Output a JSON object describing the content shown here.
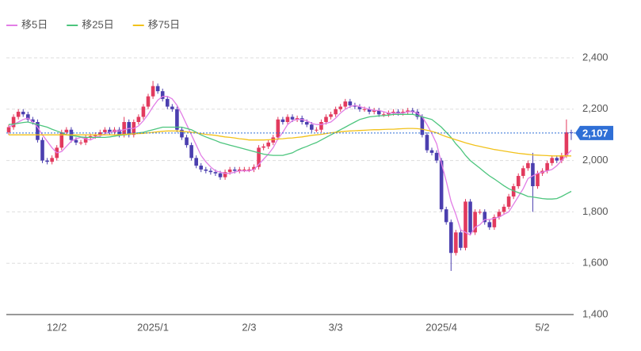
{
  "chart_data": {
    "type": "candlestick",
    "categories": [
      null,
      null,
      null,
      null,
      null,
      null,
      null,
      null,
      null,
      null,
      "12/2",
      null,
      null,
      null,
      null,
      null,
      null,
      null,
      null,
      null,
      null,
      null,
      null,
      null,
      null,
      null,
      null,
      null,
      null,
      null,
      "2025/1",
      null,
      null,
      null,
      null,
      null,
      null,
      null,
      null,
      null,
      null,
      null,
      null,
      null,
      null,
      null,
      null,
      null,
      null,
      null,
      "2/3",
      null,
      null,
      null,
      null,
      null,
      null,
      null,
      null,
      null,
      null,
      null,
      null,
      null,
      null,
      null,
      null,
      null,
      "3/3",
      null,
      null,
      null,
      null,
      null,
      null,
      null,
      null,
      null,
      null,
      null,
      null,
      null,
      null,
      null,
      null,
      null,
      null,
      null,
      null,
      null,
      "2025/4",
      null,
      null,
      null,
      null,
      null,
      null,
      null,
      null,
      null,
      null,
      null,
      null,
      null,
      null,
      null,
      null,
      null,
      null,
      null,
      null,
      "5/2",
      null,
      null,
      null,
      null,
      null,
      null
    ],
    "candles": {
      "up_color": "#e23a5e",
      "down_color": "#4b3faf",
      "open": [
        2110,
        2130,
        2170,
        2190,
        2180,
        2160,
        2150,
        2080,
        2000,
        1995,
        2010,
        2050,
        2110,
        2120,
        2080,
        2070,
        2070,
        2090,
        2095,
        2100,
        2110,
        2120,
        2110,
        2120,
        2100,
        2150,
        2100,
        2150,
        2170,
        2210,
        2250,
        2290,
        2270,
        2240,
        2210,
        2200,
        2120,
        2090,
        2060,
        2010,
        1980,
        1965,
        1960,
        1955,
        1950,
        1935,
        1955,
        1965,
        1960,
        1965,
        1965,
        1965,
        1975,
        2050,
        2055,
        2070,
        2090,
        2160,
        2150,
        2170,
        2160,
        2165,
        2150,
        2140,
        2120,
        2120,
        2150,
        2170,
        2180,
        2200,
        2210,
        2230,
        2215,
        2210,
        2200,
        2200,
        2190,
        2195,
        2180,
        2180,
        2185,
        2190,
        2185,
        2190,
        2195,
        2190,
        2170,
        2100,
        2040,
        2030,
        2000,
        1810,
        1760,
        1640,
        1720,
        1660,
        1840,
        1720,
        1800,
        1800,
        1760,
        1740,
        1780,
        1800,
        1820,
        1860,
        1900,
        1940,
        1970,
        1990,
        1900,
        1950,
        1960,
        1990,
        2010,
        2000,
        2020,
        2110
      ],
      "high": [
        2140,
        2180,
        2200,
        2200,
        2190,
        2170,
        2160,
        2090,
        2010,
        2020,
        2060,
        2120,
        2130,
        2130,
        2090,
        2080,
        2100,
        2105,
        2110,
        2120,
        2130,
        2130,
        2130,
        2130,
        2170,
        2160,
        2160,
        2180,
        2220,
        2260,
        2310,
        2300,
        2280,
        2250,
        2220,
        2210,
        2130,
        2100,
        2070,
        2020,
        1990,
        1975,
        1970,
        1965,
        1960,
        1965,
        1975,
        1975,
        1975,
        1975,
        1975,
        1985,
        2060,
        2065,
        2080,
        2100,
        2170,
        2170,
        2180,
        2180,
        2175,
        2175,
        2160,
        2150,
        2130,
        2160,
        2180,
        2190,
        2210,
        2220,
        2240,
        2240,
        2225,
        2220,
        2210,
        2210,
        2205,
        2205,
        2190,
        2195,
        2200,
        2200,
        2200,
        2205,
        2205,
        2200,
        2180,
        2110,
        2050,
        2040,
        2010,
        1820,
        1770,
        1730,
        1730,
        1850,
        1850,
        1810,
        1810,
        1810,
        1770,
        1790,
        1810,
        1830,
        1870,
        1910,
        1950,
        1980,
        2000,
        2030,
        1960,
        1970,
        2000,
        2020,
        2020,
        2030,
        2160,
        2120
      ],
      "low": [
        2100,
        2120,
        2160,
        2170,
        2150,
        2140,
        2070,
        1990,
        1985,
        1985,
        2000,
        2040,
        2100,
        2070,
        2060,
        2060,
        2060,
        2080,
        2085,
        2090,
        2100,
        2100,
        2100,
        2090,
        2090,
        2090,
        2090,
        2140,
        2160,
        2200,
        2240,
        2260,
        2230,
        2200,
        2190,
        2110,
        2080,
        2050,
        2000,
        1970,
        1955,
        1950,
        1945,
        1940,
        1925,
        1925,
        1945,
        1950,
        1950,
        1955,
        1955,
        1955,
        1965,
        2040,
        2045,
        2060,
        2080,
        2140,
        2140,
        2150,
        2150,
        2140,
        2130,
        2110,
        2110,
        2110,
        2140,
        2160,
        2170,
        2190,
        2200,
        2205,
        2200,
        2190,
        2190,
        2180,
        2180,
        2170,
        2170,
        2170,
        2175,
        2175,
        2175,
        2180,
        2180,
        2160,
        2090,
        2030,
        2020,
        1990,
        1800,
        1750,
        1570,
        1630,
        1650,
        1650,
        1710,
        1710,
        1790,
        1750,
        1730,
        1730,
        1770,
        1790,
        1810,
        1850,
        1890,
        1930,
        1960,
        1800,
        1890,
        1940,
        1950,
        1980,
        1990,
        1990,
        2010,
        2080
      ],
      "close": [
        2130,
        2170,
        2190,
        2180,
        2160,
        2150,
        2080,
        2000,
        1995,
        2010,
        2050,
        2110,
        2120,
        2080,
        2070,
        2070,
        2090,
        2095,
        2100,
        2110,
        2120,
        2110,
        2120,
        2100,
        2150,
        2100,
        2150,
        2170,
        2210,
        2250,
        2290,
        2270,
        2240,
        2210,
        2200,
        2120,
        2090,
        2060,
        2010,
        1980,
        1965,
        1960,
        1955,
        1950,
        1935,
        1955,
        1965,
        1960,
        1965,
        1965,
        1965,
        1975,
        2050,
        2055,
        2070,
        2090,
        2160,
        2150,
        2170,
        2160,
        2165,
        2150,
        2140,
        2120,
        2120,
        2150,
        2170,
        2180,
        2200,
        2210,
        2230,
        2215,
        2210,
        2200,
        2200,
        2190,
        2195,
        2180,
        2180,
        2185,
        2190,
        2185,
        2190,
        2195,
        2190,
        2170,
        2100,
        2040,
        2030,
        2000,
        1810,
        1760,
        1640,
        1720,
        1660,
        1840,
        1720,
        1800,
        1800,
        1760,
        1740,
        1780,
        1800,
        1820,
        1860,
        1900,
        1940,
        1970,
        1990,
        1900,
        1950,
        1960,
        1990,
        2010,
        2000,
        2020,
        2110,
        2107
      ]
    },
    "series": [
      {
        "name": "移5日",
        "color": "#e27ee6",
        "values": [
          2130,
          2140,
          2150,
          2160,
          2165,
          2150,
          2130,
          2100,
          2075,
          2050,
          2030,
          2035,
          2055,
          2075,
          2085,
          2090,
          2085,
          2080,
          2090,
          2095,
          2105,
          2110,
          2115,
          2115,
          2120,
          2125,
          2125,
          2135,
          2155,
          2180,
          2210,
          2235,
          2250,
          2250,
          2240,
          2215,
          2180,
          2140,
          2100,
          2060,
          2020,
          1995,
          1975,
          1960,
          1955,
          1950,
          1950,
          1955,
          1960,
          1960,
          1960,
          1965,
          1985,
          2005,
          2025,
          2050,
          2085,
          2110,
          2140,
          2155,
          2160,
          2160,
          2155,
          2145,
          2140,
          2140,
          2145,
          2150,
          2165,
          2185,
          2200,
          2210,
          2215,
          2210,
          2205,
          2200,
          2195,
          2195,
          2190,
          2185,
          2185,
          2185,
          2185,
          2190,
          2190,
          2185,
          2170,
          2140,
          2105,
          2065,
          1990,
          1920,
          1840,
          1790,
          1730,
          1720,
          1710,
          1740,
          1750,
          1770,
          1770,
          1775,
          1780,
          1790,
          1800,
          1830,
          1860,
          1890,
          1930,
          1940,
          1950,
          1955,
          1960,
          1965,
          1980,
          2000,
          2020,
          2040
        ]
      },
      {
        "name": "移25日",
        "color": "#4cc57d",
        "values": [
          2140,
          2142,
          2145,
          2148,
          2150,
          2145,
          2140,
          2135,
          2130,
          2122,
          2115,
          2108,
          2100,
          2098,
          2095,
          2092,
          2090,
          2090,
          2090,
          2090,
          2090,
          2092,
          2095,
          2098,
          2100,
          2102,
          2105,
          2108,
          2110,
          2115,
          2120,
          2125,
          2130,
          2130,
          2130,
          2130,
          2130,
          2125,
          2120,
          2110,
          2100,
          2092,
          2085,
          2078,
          2070,
          2065,
          2060,
          2055,
          2050,
          2045,
          2040,
          2035,
          2030,
          2025,
          2022,
          2020,
          2020,
          2020,
          2025,
          2030,
          2040,
          2048,
          2055,
          2063,
          2070,
          2080,
          2090,
          2100,
          2110,
          2120,
          2130,
          2140,
          2150,
          2160,
          2165,
          2170,
          2172,
          2174,
          2175,
          2177,
          2180,
          2180,
          2180,
          2180,
          2180,
          2175,
          2170,
          2165,
          2160,
          2145,
          2130,
          2110,
          2090,
          2065,
          2045,
          2020,
          2000,
          1985,
          1970,
          1955,
          1940,
          1928,
          1915,
          1902,
          1890,
          1882,
          1875,
          1868,
          1860,
          1858,
          1855,
          1852,
          1850,
          1850,
          1852,
          1860,
          1870,
          1880
        ]
      },
      {
        "name": "移75日",
        "color": "#f2c21b",
        "values": [
          2100,
          2100,
          2100,
          2100,
          2100,
          2100,
          2100,
          2100,
          2100,
          2100,
          2100,
          2100,
          2100,
          2100,
          2100,
          2100,
          2100,
          2100,
          2100,
          2100,
          2100,
          2100,
          2100,
          2101,
          2102,
          2103,
          2104,
          2105,
          2106,
          2108,
          2110,
          2112,
          2114,
          2115,
          2115,
          2115,
          2114,
          2112,
          2110,
          2108,
          2105,
          2102,
          2100,
          2098,
          2095,
          2092,
          2090,
          2088,
          2085,
          2083,
          2080,
          2080,
          2080,
          2080,
          2081,
          2082,
          2084,
          2085,
          2087,
          2088,
          2090,
          2092,
          2095,
          2098,
          2100,
          2102,
          2105,
          2108,
          2110,
          2112,
          2114,
          2115,
          2116,
          2117,
          2118,
          2119,
          2120,
          2120,
          2121,
          2122,
          2122,
          2123,
          2124,
          2125,
          2125,
          2124,
          2122,
          2118,
          2114,
          2108,
          2100,
          2093,
          2087,
          2081,
          2075,
          2069,
          2064,
          2059,
          2055,
          2051,
          2047,
          2043,
          2040,
          2037,
          2034,
          2031,
          2028,
          2026,
          2024,
          2022,
          2021,
          2020,
          2019,
          2018,
          2018,
          2018,
          2018,
          2018
        ]
      }
    ],
    "last_price": {
      "value": 2107,
      "label": "2,107",
      "color": "#2f6fd6"
    },
    "ylim": [
      1400,
      2400
    ],
    "yticks": [
      {
        "value": 1400,
        "label": "1,400"
      },
      {
        "value": 1600,
        "label": "1,600"
      },
      {
        "value": 1800,
        "label": "1,800"
      },
      {
        "value": 2000,
        "label": "2,000"
      },
      {
        "value": 2200,
        "label": "2,200"
      },
      {
        "value": 2400,
        "label": "2,400"
      }
    ],
    "grid": true
  }
}
